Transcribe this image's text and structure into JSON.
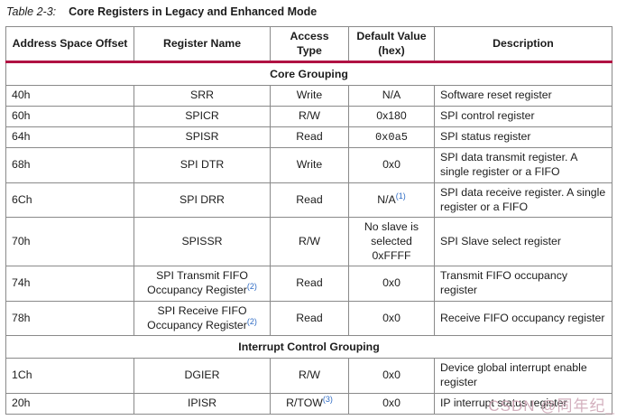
{
  "caption": {
    "label": "Table 2-3:",
    "title": "Core Registers in Legacy and Enhanced Mode"
  },
  "colors": {
    "header_rule": "#b01243",
    "footnote_link": "#2e6bc4",
    "table_border": "#8a8a8a",
    "watermark": "#cfa8b7"
  },
  "watermark": "CSDN @同年纪_",
  "table": {
    "columns": {
      "offset": "Address Space Offset",
      "name": "Register Name",
      "access": "Access Type",
      "default": "Default Value\n(hex)",
      "description": "Description"
    },
    "rows": [
      {
        "type": "section",
        "label": "Core Grouping"
      },
      {
        "type": "data",
        "offset": "40h",
        "name": "SRR",
        "access": "Write",
        "default": "N/A",
        "description": "Software reset register"
      },
      {
        "type": "data",
        "offset": "60h",
        "name": "SPICR",
        "access": "R/W",
        "default": "0x180",
        "description": "SPI control register"
      },
      {
        "type": "data",
        "offset": "64h",
        "name": "SPISR",
        "access": "Read",
        "default": "0x0a5",
        "description": "SPI status register"
      },
      {
        "type": "data",
        "offset": "68h",
        "name": "SPI DTR",
        "access": "Write",
        "default": "0x0",
        "description": "SPI data transmit register. A single register or a FIFO"
      },
      {
        "type": "data",
        "offset": "6Ch",
        "name": "SPI DRR",
        "access": "Read",
        "default": "N/A",
        "default_sup": "(1)",
        "description": "SPI data receive register. A single register or a FIFO"
      },
      {
        "type": "data",
        "offset": "70h",
        "name": "SPISSR",
        "access": "R/W",
        "default": "No slave is\nselected\n0xFFFF",
        "description": "SPI Slave select register"
      },
      {
        "type": "data",
        "offset": "74h",
        "name": "SPI Transmit FIFO Occupancy Register",
        "name_sup": "(2)",
        "access": "Read",
        "default": "0x0",
        "description": "Transmit FIFO occupancy register"
      },
      {
        "type": "data",
        "offset": "78h",
        "name": "SPI Receive FIFO Occupancy Register",
        "name_sup": "(2)",
        "access": "Read",
        "default": "0x0",
        "description": "Receive FIFO occupancy register"
      },
      {
        "type": "section",
        "label": "Interrupt Control Grouping"
      },
      {
        "type": "data",
        "offset": "1Ch",
        "name": "DGIER",
        "access": "R/W",
        "default": "0x0",
        "description": "Device global interrupt enable register"
      },
      {
        "type": "data",
        "offset": "20h",
        "name": "IPISR",
        "access": "R/TOW",
        "access_sup": "(3)",
        "default": "0x0",
        "description": "IP interrupt status register"
      }
    ]
  }
}
